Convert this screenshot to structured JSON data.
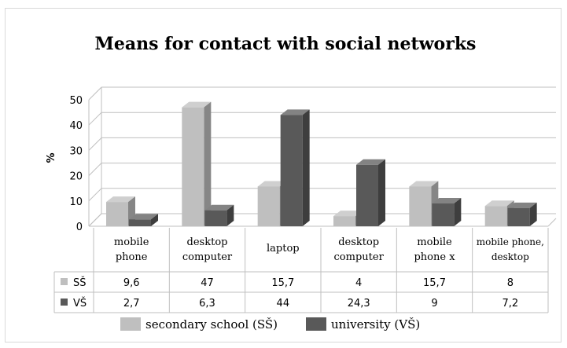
{
  "chart_data": {
    "type": "bar",
    "title": "Means for contact with social networks",
    "ylabel": "%",
    "ylim": [
      0,
      50
    ],
    "yticks": [
      "0",
      "10",
      "20",
      "30",
      "40",
      "50"
    ],
    "categories": [
      [
        "mobile",
        "phone"
      ],
      [
        "desktop",
        "computer"
      ],
      [
        "laptop"
      ],
      [
        "desktop",
        "computer"
      ],
      [
        "mobile",
        "phone x"
      ],
      [
        "mobile phone,",
        "desktop"
      ]
    ],
    "series": [
      {
        "name": "secondary school (SŠ)",
        "table_label": "SŠ",
        "values": [
          9.6,
          47,
          15.7,
          4,
          15.7,
          8
        ],
        "labels": [
          "9,6",
          "47",
          "15,7",
          "4",
          "15,7",
          "8"
        ],
        "color": "#bfbfbf"
      },
      {
        "name": "university (VŠ)",
        "table_label": "VŠ",
        "values": [
          2.7,
          6.3,
          44,
          24.3,
          9,
          7.2
        ],
        "labels": [
          "2,7",
          "6,3",
          "44",
          "24,3",
          "9",
          "7,2"
        ],
        "color": "#595959"
      }
    ],
    "grid": true,
    "legend": "bottom",
    "data_table": true
  }
}
